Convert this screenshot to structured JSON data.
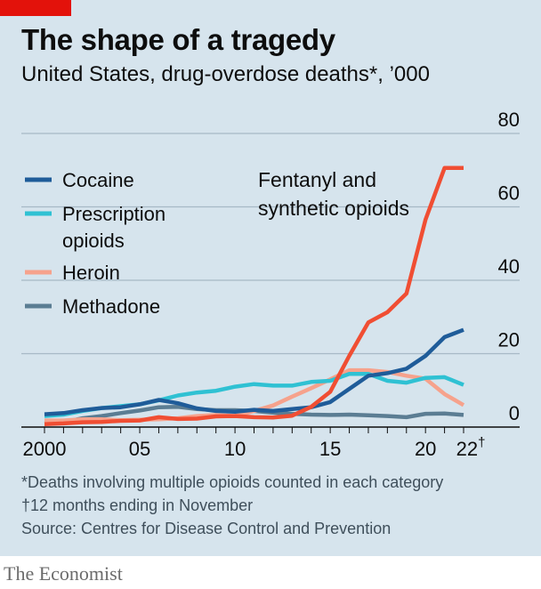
{
  "header": {
    "title": "The shape of a tragedy",
    "subtitle": "United States, drug-overdose deaths*, ’000"
  },
  "footnotes": {
    "note1": "*Deaths involving multiple opioids counted in each category",
    "note2": "†12 months ending in November",
    "source": "Source: Centres for Disease Control and Prevention"
  },
  "brand": "The Economist",
  "colors": {
    "background": "#d6e4ed",
    "accent_tag": "#e3120b",
    "gridline": "#a7b9c6",
    "axis": "#0d0d0d"
  },
  "chart_data": {
    "type": "line",
    "x_tick_labels": [
      "2000",
      "05",
      "10",
      "15",
      "20",
      "22†"
    ],
    "y_tick_labels": [
      "0",
      "20",
      "40",
      "60",
      "80"
    ],
    "ylim": [
      0,
      80
    ],
    "xlim": [
      2000,
      2022
    ],
    "grid": true,
    "legend_position": "top-left",
    "annotation": "Fentanyl and\nsynthetic opioids",
    "series": [
      {
        "name": "Fentanyl and synthetic opioids",
        "legend": false,
        "color": "#f04e33",
        "x": [
          2000,
          2001,
          2002,
          2003,
          2004,
          2005,
          2006,
          2007,
          2008,
          2009,
          2010,
          2011,
          2012,
          2013,
          2014,
          2015,
          2016,
          2017,
          2018,
          2019,
          2020,
          2021,
          2022
        ],
        "y": [
          0.8,
          1.0,
          1.3,
          1.4,
          1.7,
          1.8,
          2.7,
          2.2,
          2.3,
          2.9,
          3.0,
          2.7,
          2.6,
          3.1,
          5.5,
          9.6,
          19.4,
          28.5,
          31.3,
          36.4,
          56.5,
          70.6,
          70.6
        ]
      },
      {
        "name": "Cocaine",
        "legend": true,
        "color": "#1f5c99",
        "x": [
          2000,
          2001,
          2002,
          2003,
          2004,
          2005,
          2006,
          2007,
          2008,
          2009,
          2010,
          2011,
          2012,
          2013,
          2014,
          2015,
          2016,
          2017,
          2018,
          2019,
          2020,
          2021,
          2022
        ],
        "y": [
          3.5,
          3.8,
          4.6,
          5.2,
          5.4,
          6.2,
          7.4,
          6.5,
          5.1,
          4.4,
          4.2,
          4.7,
          4.4,
          4.9,
          5.4,
          6.8,
          10.4,
          14.0,
          14.7,
          15.9,
          19.4,
          24.5,
          26.5
        ]
      },
      {
        "name": "Prescription opioids",
        "legend": true,
        "label": "Prescription\nopioids",
        "color": "#2fc1d3",
        "x": [
          2000,
          2001,
          2002,
          2003,
          2004,
          2005,
          2006,
          2007,
          2008,
          2009,
          2010,
          2011,
          2012,
          2013,
          2014,
          2015,
          2016,
          2017,
          2018,
          2019,
          2020,
          2021,
          2022
        ],
        "y": [
          3.0,
          3.4,
          4.4,
          5.2,
          5.7,
          6.2,
          7.3,
          8.6,
          9.4,
          9.9,
          11.0,
          11.7,
          11.3,
          11.3,
          12.3,
          12.6,
          14.5,
          14.5,
          12.6,
          12.1,
          13.4,
          13.6,
          11.5
        ]
      },
      {
        "name": "Heroin",
        "legend": true,
        "color": "#f6a28c",
        "x": [
          2000,
          2001,
          2002,
          2003,
          2004,
          2005,
          2006,
          2007,
          2008,
          2009,
          2010,
          2011,
          2012,
          2013,
          2014,
          2015,
          2016,
          2017,
          2018,
          2019,
          2020,
          2021,
          2022
        ],
        "y": [
          1.8,
          1.8,
          2.1,
          2.1,
          1.9,
          2.0,
          2.1,
          2.4,
          3.0,
          3.3,
          3.0,
          4.4,
          5.9,
          8.3,
          10.6,
          13.0,
          15.5,
          15.5,
          15.0,
          14.0,
          13.2,
          9.0,
          6.0
        ]
      },
      {
        "name": "Methadone",
        "legend": true,
        "color": "#5b7d93",
        "x": [
          2000,
          2001,
          2002,
          2003,
          2004,
          2005,
          2006,
          2007,
          2008,
          2009,
          2010,
          2011,
          2012,
          2013,
          2014,
          2015,
          2016,
          2017,
          2018,
          2019,
          2020,
          2021,
          2022
        ],
        "y": [
          1.0,
          1.3,
          2.4,
          3.0,
          3.8,
          4.5,
          5.4,
          5.5,
          4.9,
          4.6,
          4.6,
          4.4,
          3.9,
          3.6,
          3.4,
          3.3,
          3.4,
          3.2,
          3.0,
          2.7,
          3.6,
          3.7,
          3.3
        ]
      }
    ]
  }
}
